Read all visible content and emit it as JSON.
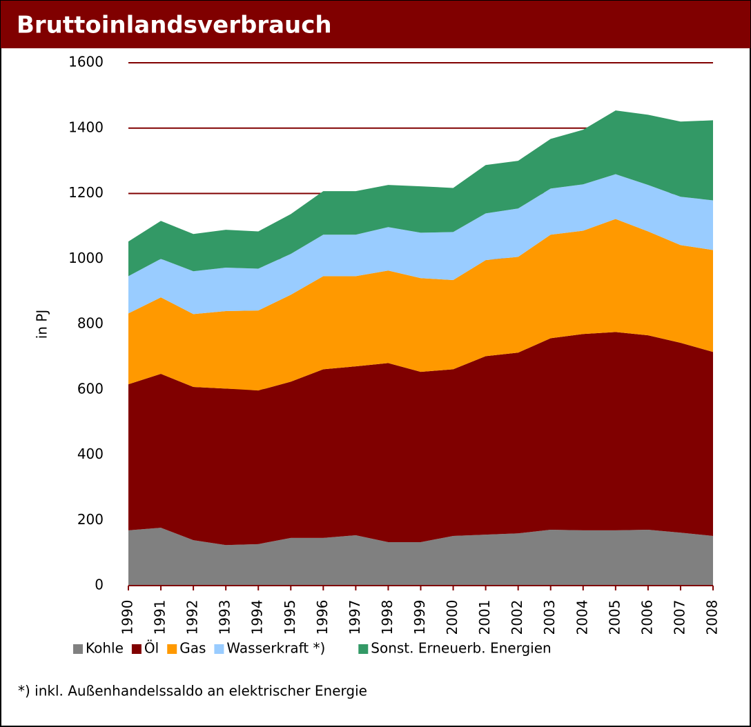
{
  "chart_data": {
    "type": "stacked_area",
    "title": "Bruttoinlandsverbrauch",
    "y_label": "in PJ",
    "categories": [
      "1990",
      "1991",
      "1992",
      "1993",
      "1994",
      "1995",
      "1996",
      "1997",
      "1998",
      "1999",
      "2000",
      "2001",
      "2002",
      "2003",
      "2004",
      "2005",
      "2006",
      "2007",
      "2008"
    ],
    "series": [
      {
        "name": "Kohle",
        "color": "#808080",
        "values": [
          169,
          177,
          139,
          124,
          127,
          146,
          146,
          154,
          133,
          133,
          152,
          156,
          160,
          171,
          169,
          169,
          171,
          162,
          152
        ]
      },
      {
        "name": "Öl",
        "color": "#800000",
        "values": [
          447,
          471,
          469,
          479,
          470,
          478,
          516,
          517,
          548,
          521,
          510,
          546,
          553,
          586,
          601,
          607,
          595,
          581,
          563
        ]
      },
      {
        "name": "Gas",
        "color": "#ff9900",
        "values": [
          217,
          234,
          223,
          237,
          245,
          266,
          285,
          276,
          283,
          287,
          273,
          294,
          293,
          317,
          316,
          346,
          318,
          299,
          312
        ]
      },
      {
        "name": "Wasserkraft *)",
        "color": "#99ccff",
        "values": [
          114,
          118,
          131,
          133,
          128,
          125,
          127,
          127,
          133,
          139,
          147,
          143,
          148,
          141,
          142,
          137,
          142,
          148,
          152
        ]
      },
      {
        "name": "Sonst. Erneuerb. Energien",
        "color": "#339966",
        "values": [
          106,
          116,
          114,
          116,
          114,
          122,
          133,
          133,
          129,
          142,
          135,
          148,
          146,
          152,
          167,
          195,
          215,
          230,
          245
        ]
      }
    ],
    "ylim": [
      0,
      1600
    ],
    "yticks": [
      0,
      200,
      400,
      600,
      800,
      1000,
      1200,
      1400,
      1600
    ],
    "grid": true,
    "grid_color": "#800000",
    "legend": "bottom",
    "footnote": "*) inkl. Außenhandelssaldo an elektrischer Energie"
  }
}
